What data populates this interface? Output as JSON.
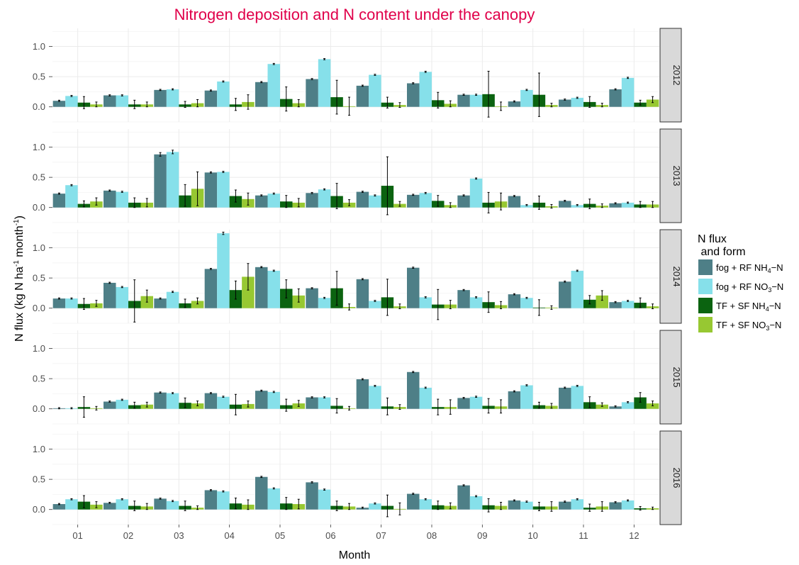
{
  "chart_data": {
    "type": "bar",
    "title": "Nitrogen deposition and N content under the canopy",
    "xlabel": "Month",
    "ylabel_main": "N flux  (kg N ha",
    "ylabel_sup1": "-1",
    "ylabel_mid": " month",
    "ylabel_sup2": "-1",
    "ylabel_end": ")",
    "categories": [
      "01",
      "02",
      "03",
      "04",
      "05",
      "06",
      "07",
      "08",
      "09",
      "10",
      "11",
      "12"
    ],
    "ylim": [
      -0.25,
      1.3
    ],
    "y_ticks": [
      0.0,
      0.5,
      1.0
    ],
    "y_tick_labels": [
      "0.0",
      "0.5",
      "1.0"
    ],
    "grid": true,
    "legend": {
      "position": "right",
      "title_line1": "N flux",
      "title_line2": " and form",
      "items": [
        {
          "pre": "fog + RF NH",
          "sub": "4",
          "post": "−N",
          "color": "#4e7f87"
        },
        {
          "pre": "fog + RF NO",
          "sub": "3",
          "post": "−N",
          "color": "#86e0ea"
        },
        {
          "pre": "TF + SF NH",
          "sub": "4",
          "post": "−N",
          "color": "#0b6310"
        },
        {
          "pre": "TF + SF NO",
          "sub": "3",
          "post": "−N",
          "color": "#97c832"
        }
      ]
    },
    "panels": [
      {
        "label": "2012",
        "series": [
          {
            "values": [
              0.1,
              0.19,
              0.28,
              0.27,
              0.41,
              0.46,
              0.35,
              0.39,
              0.2,
              0.09,
              0.12,
              0.29
            ],
            "err": [
              0.01,
              0.01,
              0.01,
              0.01,
              0.01,
              0.01,
              0.01,
              0.01,
              0.01,
              0.01,
              0.01,
              0.01
            ]
          },
          {
            "values": [
              0.18,
              0.19,
              0.29,
              0.42,
              0.71,
              0.79,
              0.53,
              0.58,
              0.2,
              0.28,
              0.15,
              0.48
            ],
            "err": [
              0.01,
              0.01,
              0.01,
              0.01,
              0.01,
              0.01,
              0.01,
              0.01,
              0.01,
              0.01,
              0.01,
              0.01
            ]
          },
          {
            "values": [
              0.07,
              0.04,
              0.04,
              0.04,
              0.13,
              0.16,
              0.07,
              0.11,
              0.21,
              0.2,
              0.08,
              0.07
            ],
            "err": [
              0.1,
              0.07,
              0.05,
              0.1,
              0.2,
              0.28,
              0.09,
              0.13,
              0.38,
              0.36,
              0.09,
              0.04
            ]
          },
          {
            "values": [
              0.04,
              0.04,
              0.06,
              0.08,
              0.06,
              0.01,
              0.03,
              0.05,
              0.01,
              0.03,
              0.03,
              0.12
            ],
            "err": [
              0.04,
              0.04,
              0.06,
              0.12,
              0.06,
              0.15,
              0.04,
              0.05,
              0.07,
              0.03,
              0.03,
              0.05
            ]
          }
        ]
      },
      {
        "label": "2013",
        "series": [
          {
            "values": [
              0.23,
              0.28,
              0.88,
              0.58,
              0.2,
              0.24,
              0.26,
              0.21,
              0.2,
              0.19,
              0.11,
              0.07
            ],
            "err": [
              0.01,
              0.01,
              0.03,
              0.01,
              0.01,
              0.01,
              0.01,
              0.01,
              0.01,
              0.01,
              0.01,
              0.01
            ]
          },
          {
            "values": [
              0.37,
              0.26,
              0.92,
              0.59,
              0.23,
              0.3,
              0.2,
              0.24,
              0.48,
              0.04,
              0.04,
              0.08
            ],
            "err": [
              0.01,
              0.01,
              0.03,
              0.01,
              0.01,
              0.01,
              0.01,
              0.01,
              0.01,
              0.01,
              0.01,
              0.01
            ]
          },
          {
            "values": [
              0.06,
              0.08,
              0.2,
              0.19,
              0.1,
              0.19,
              0.36,
              0.11,
              0.08,
              0.08,
              0.06,
              0.05
            ],
            "err": [
              0.05,
              0.08,
              0.18,
              0.1,
              0.1,
              0.21,
              0.48,
              0.09,
              0.17,
              0.11,
              0.08,
              0.05
            ]
          },
          {
            "values": [
              0.1,
              0.08,
              0.31,
              0.14,
              0.08,
              0.08,
              0.06,
              0.04,
              0.1,
              0.02,
              0.03,
              0.05
            ],
            "err": [
              0.06,
              0.07,
              0.28,
              0.1,
              0.07,
              0.05,
              0.04,
              0.04,
              0.14,
              0.03,
              0.03,
              0.05
            ]
          }
        ]
      },
      {
        "label": "2014",
        "series": [
          {
            "values": [
              0.16,
              0.42,
              0.16,
              0.65,
              0.68,
              0.33,
              0.48,
              0.67,
              0.3,
              0.23,
              0.44,
              0.1
            ],
            "err": [
              0.01,
              0.01,
              0.01,
              0.01,
              0.01,
              0.01,
              0.01,
              0.01,
              0.01,
              0.01,
              0.01,
              0.01
            ]
          },
          {
            "values": [
              0.16,
              0.35,
              0.27,
              1.24,
              0.62,
              0.17,
              0.12,
              0.18,
              0.18,
              0.17,
              0.62,
              0.12
            ],
            "err": [
              0.01,
              0.01,
              0.01,
              0.02,
              0.01,
              0.01,
              0.01,
              0.01,
              0.01,
              0.01,
              0.01,
              0.01
            ]
          },
          {
            "values": [
              0.07,
              0.12,
              0.08,
              0.3,
              0.32,
              0.33,
              0.18,
              0.06,
              0.1,
              0.01,
              0.14,
              0.09
            ],
            "err": [
              0.09,
              0.35,
              0.07,
              0.15,
              0.15,
              0.28,
              0.3,
              0.25,
              0.17,
              0.13,
              0.07,
              0.08
            ]
          },
          {
            "values": [
              0.08,
              0.2,
              0.12,
              0.52,
              0.21,
              0.02,
              0.03,
              0.06,
              0.05,
              0.01,
              0.21,
              0.03
            ],
            "err": [
              0.05,
              0.1,
              0.05,
              0.22,
              0.11,
              0.05,
              0.04,
              0.07,
              0.06,
              0.03,
              0.08,
              0.04
            ]
          }
        ]
      },
      {
        "label": "2015",
        "series": [
          {
            "values": [
              0.01,
              0.12,
              0.27,
              0.26,
              0.3,
              0.19,
              0.49,
              0.61,
              0.18,
              0.29,
              0.35,
              0.04
            ],
            "err": [
              0.01,
              0.01,
              0.01,
              0.01,
              0.01,
              0.01,
              0.01,
              0.01,
              0.01,
              0.01,
              0.01,
              0.01
            ]
          },
          {
            "values": [
              0.01,
              0.15,
              0.26,
              0.2,
              0.28,
              0.19,
              0.38,
              0.35,
              0.2,
              0.39,
              0.38,
              0.11
            ],
            "err": [
              0.01,
              0.01,
              0.01,
              0.01,
              0.01,
              0.01,
              0.01,
              0.01,
              0.01,
              0.01,
              0.01,
              0.01
            ]
          },
          {
            "values": [
              0.03,
              0.06,
              0.1,
              0.07,
              0.06,
              0.05,
              0.04,
              0.03,
              0.05,
              0.06,
              0.11,
              0.19
            ],
            "err": [
              0.17,
              0.05,
              0.08,
              0.17,
              0.1,
              0.12,
              0.14,
              0.13,
              0.12,
              0.05,
              0.09,
              0.08
            ]
          },
          {
            "values": [
              0.01,
              0.07,
              0.09,
              0.08,
              0.09,
              0.01,
              0.03,
              0.03,
              0.04,
              0.05,
              0.07,
              0.09
            ],
            "err": [
              0.03,
              0.04,
              0.04,
              0.05,
              0.05,
              0.03,
              0.04,
              0.12,
              0.11,
              0.04,
              0.03,
              0.04
            ]
          }
        ]
      },
      {
        "label": "2016",
        "series": [
          {
            "values": [
              0.09,
              0.11,
              0.18,
              0.32,
              0.54,
              0.45,
              0.03,
              0.26,
              0.4,
              0.15,
              0.13,
              0.12
            ],
            "err": [
              0.01,
              0.01,
              0.01,
              0.01,
              0.01,
              0.01,
              0.01,
              0.01,
              0.01,
              0.01,
              0.01,
              0.01
            ]
          },
          {
            "values": [
              0.17,
              0.17,
              0.14,
              0.3,
              0.35,
              0.33,
              0.1,
              0.17,
              0.22,
              0.13,
              0.17,
              0.15
            ],
            "err": [
              0.01,
              0.01,
              0.01,
              0.01,
              0.01,
              0.01,
              0.01,
              0.01,
              0.01,
              0.01,
              0.01,
              0.01
            ]
          },
          {
            "values": [
              0.13,
              0.06,
              0.06,
              0.1,
              0.1,
              0.06,
              0.06,
              0.07,
              0.07,
              0.05,
              0.03,
              0.02
            ],
            "err": [
              0.1,
              0.08,
              0.08,
              0.09,
              0.1,
              0.08,
              0.18,
              0.07,
              0.11,
              0.07,
              0.06,
              0.03
            ]
          },
          {
            "values": [
              0.08,
              0.05,
              0.03,
              0.08,
              0.09,
              0.05,
              0.01,
              0.06,
              0.06,
              0.05,
              0.05,
              0.02
            ],
            "err": [
              0.05,
              0.05,
              0.03,
              0.08,
              0.08,
              0.05,
              0.1,
              0.05,
              0.06,
              0.08,
              0.08,
              0.02
            ]
          }
        ]
      }
    ]
  }
}
